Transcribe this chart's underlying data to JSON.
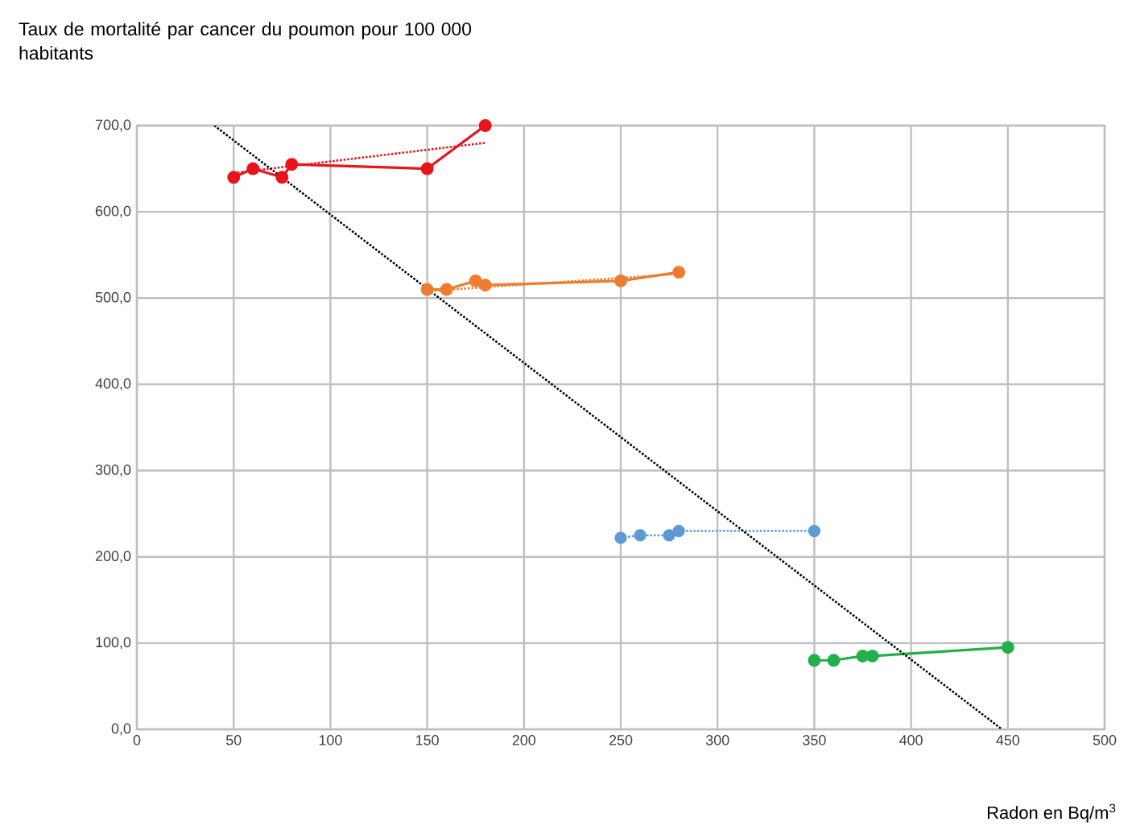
{
  "chart_data": {
    "type": "line",
    "title": "Taux de mortalité par cancer du poumon pour 100 000 habitants",
    "xlabel": "Radon en Bq/m$^{3}$",
    "xlim": [
      0,
      500
    ],
    "xticks": [
      0,
      50,
      100,
      150,
      200,
      250,
      300,
      350,
      400,
      450,
      500
    ],
    "ylim": [
      0,
      700
    ],
    "yticks": [
      {
        "value": 0,
        "label": "0,0"
      },
      {
        "value": 100,
        "label": "100,0"
      },
      {
        "value": 200,
        "label": "200,0"
      },
      {
        "value": 300,
        "label": "300,0"
      },
      {
        "value": 400,
        "label": "400,0"
      },
      {
        "value": 500,
        "label": "500,0"
      },
      {
        "value": 600,
        "label": "600,0"
      },
      {
        "value": 700,
        "label": "700,0"
      }
    ],
    "grid": true,
    "series": [
      {
        "color": "#e8141c",
        "marker": "circle",
        "line_style": "solid",
        "x": [
          50,
          60,
          75,
          80,
          150,
          180
        ],
        "values": [
          640,
          650,
          640,
          655,
          650,
          700
        ]
      },
      {
        "color": "#e8141c",
        "marker": "none",
        "line_style": "dotted",
        "x": [
          50,
          180
        ],
        "values": [
          645,
          680
        ]
      },
      {
        "color": "#ed7d31",
        "marker": "circle",
        "line_style": "solid",
        "x": [
          150,
          160,
          175,
          180,
          250,
          280
        ],
        "values": [
          510,
          510,
          520,
          515,
          520,
          530
        ]
      },
      {
        "color": "#ed7d31",
        "marker": "none",
        "line_style": "dotted",
        "x": [
          150,
          280
        ],
        "values": [
          508,
          528
        ]
      },
      {
        "color": "#5b9bd5",
        "marker": "circle",
        "line_style": "dotted",
        "x": [
          250,
          260,
          275,
          280,
          350
        ],
        "values": [
          222,
          225,
          225,
          230,
          230
        ]
      },
      {
        "color": "#22b04a",
        "marker": "circle",
        "line_style": "solid",
        "x": [
          350,
          360,
          375,
          380,
          450
        ],
        "values": [
          80,
          80,
          85,
          85,
          95
        ]
      },
      {
        "color": "#000000",
        "marker": "none",
        "line_style": "dotted",
        "x": [
          40,
          447
        ],
        "values": [
          700,
          0
        ]
      }
    ]
  }
}
